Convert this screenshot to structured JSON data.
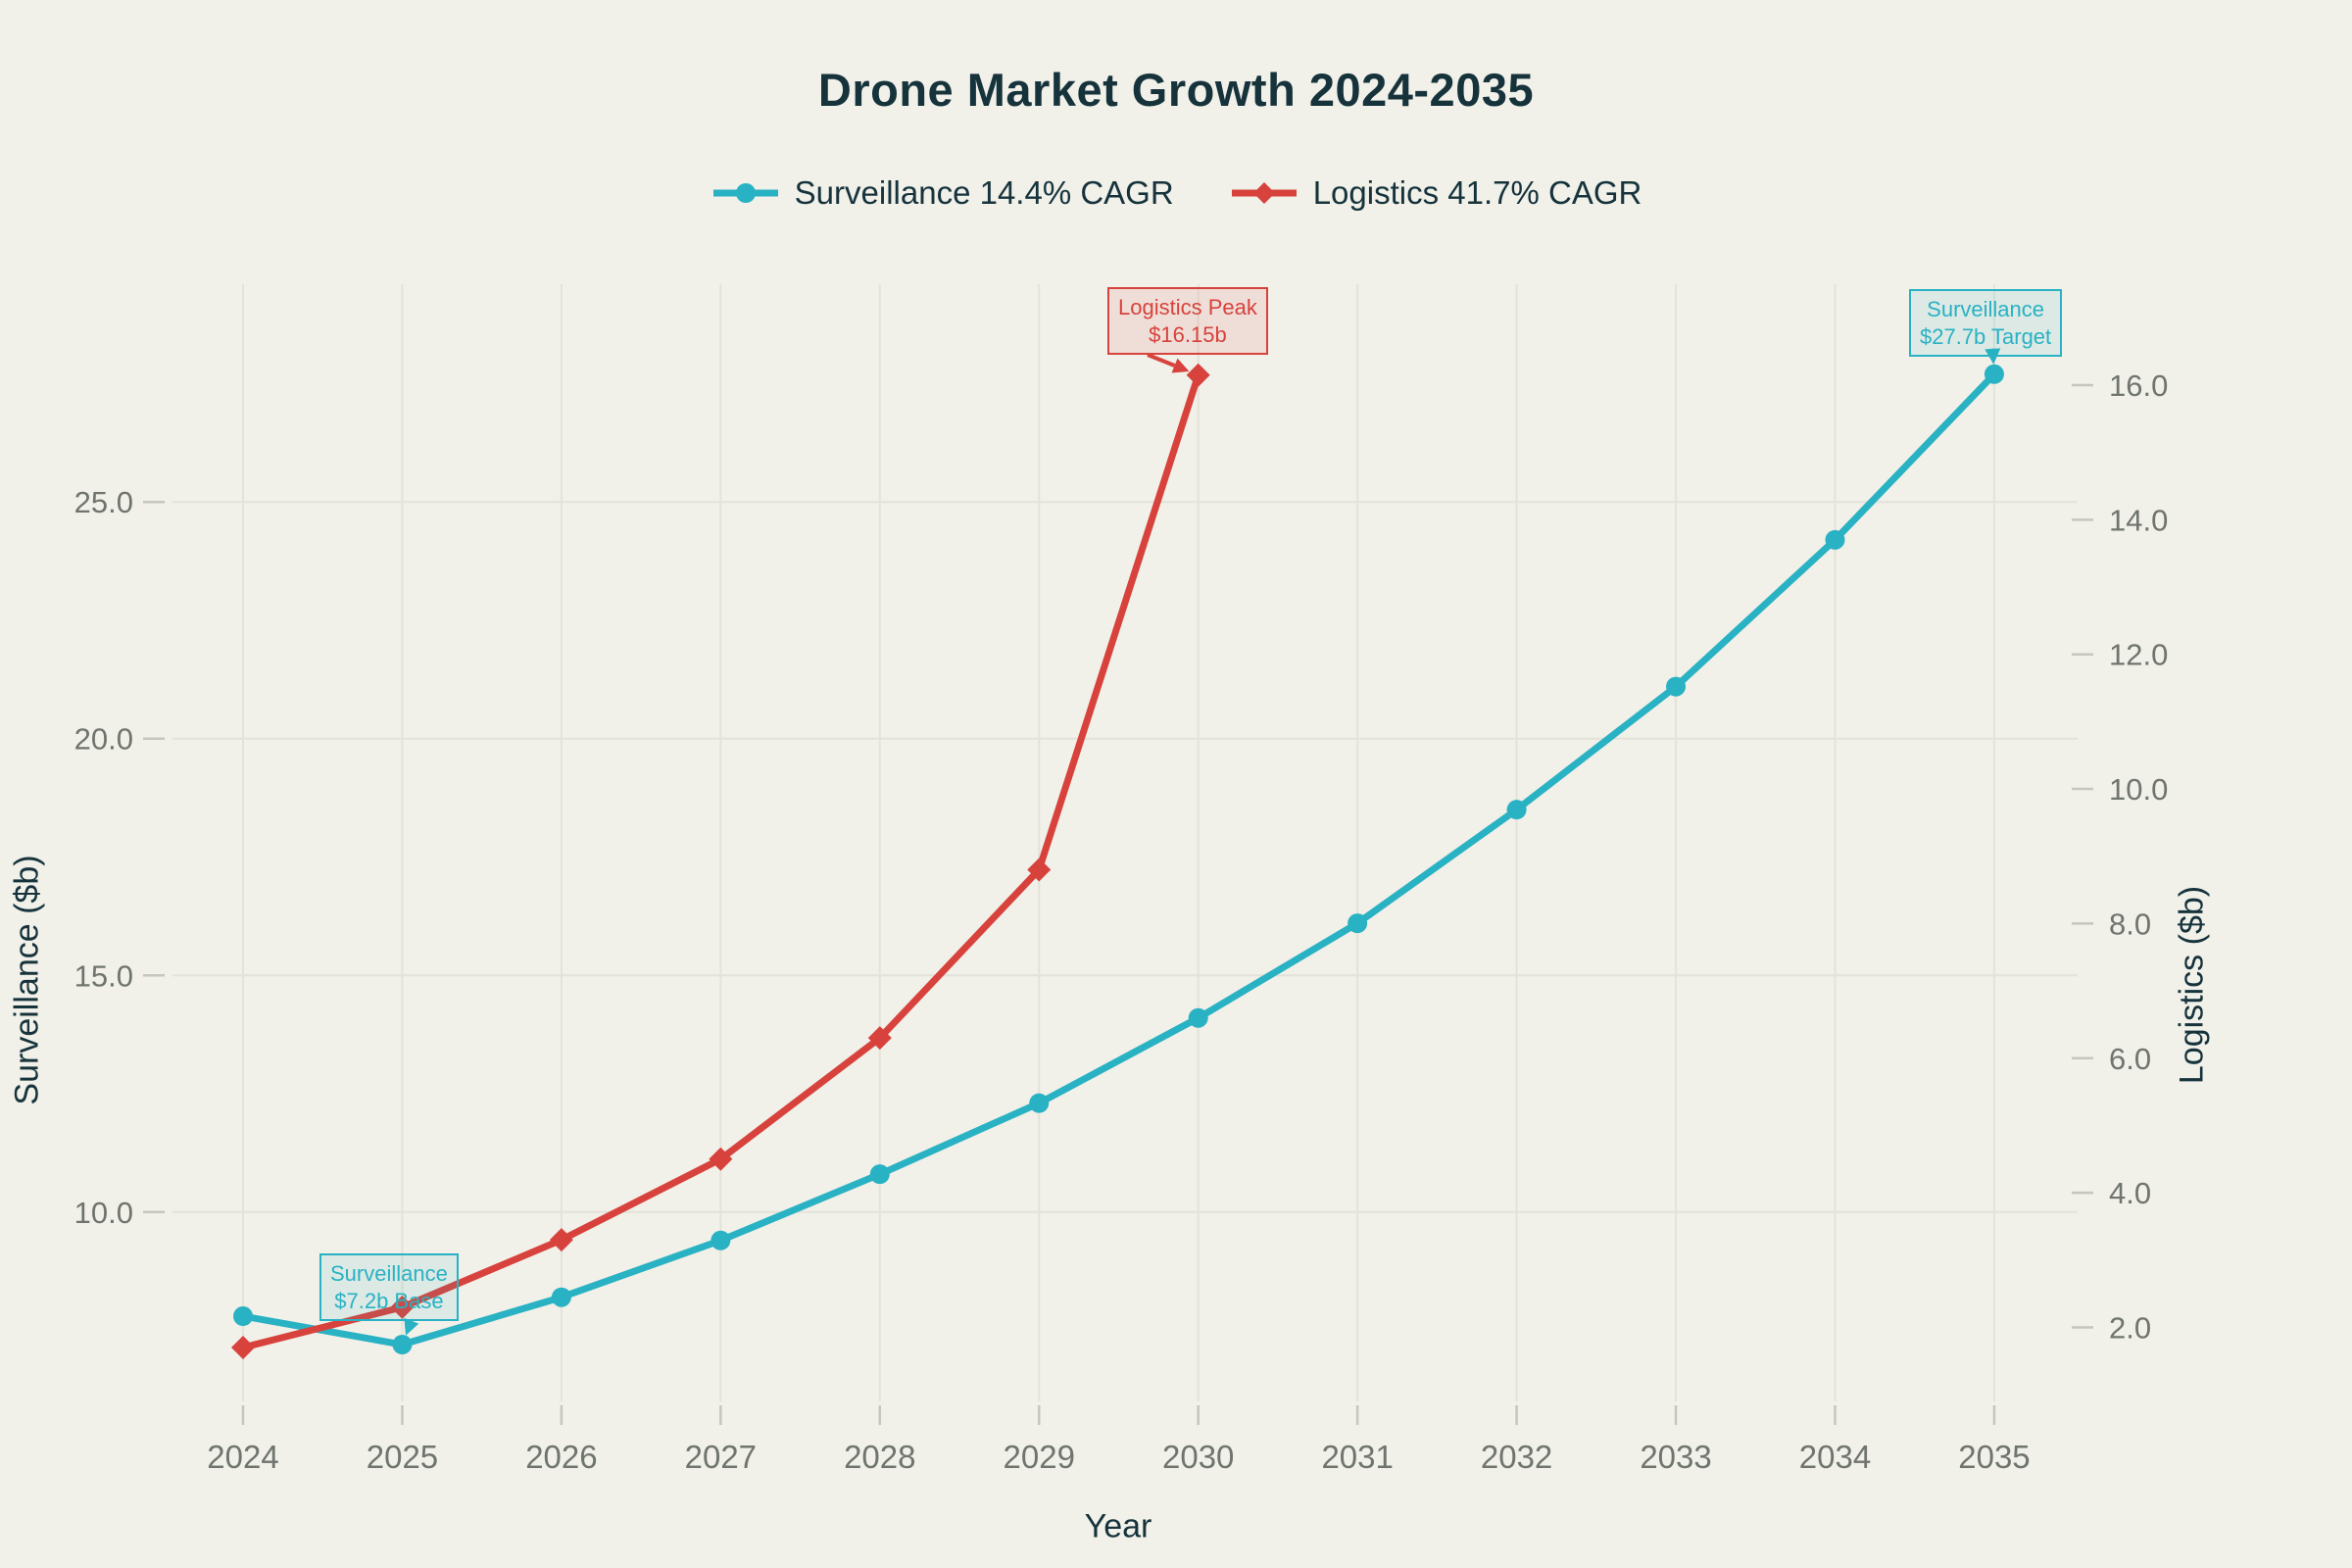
{
  "page": {
    "background": "#f1f0e9"
  },
  "colors": {
    "surveillance": "#29b2c3",
    "logistics": "#d8423c",
    "dark_text": "#16333c",
    "tick_text": "#6f746e",
    "gridline": "#e3e3da",
    "tick_dash": "#c6c6bd",
    "surveillance_box_bg": "rgba(41,178,195,0.10)",
    "logistics_box_bg": "rgba(216,66,60,0.10)"
  },
  "chart_data": {
    "type": "line",
    "title": "Drone Market Growth 2024-2035",
    "xlabel": "Year",
    "grid": true,
    "legend_position": "top-center",
    "x": [
      2024,
      2025,
      2026,
      2027,
      2028,
      2029,
      2030,
      2031,
      2032,
      2033,
      2034,
      2035
    ],
    "series": [
      {
        "name": "Surveillance 14.4% CAGR",
        "axis": "left",
        "marker": "circle",
        "color": "#29b2c3",
        "values": [
          7.8,
          7.2,
          8.2,
          9.4,
          10.8,
          12.3,
          14.1,
          16.1,
          18.5,
          21.1,
          24.2,
          27.7
        ]
      },
      {
        "name": "Logistics 41.7% CAGR",
        "axis": "right",
        "marker": "diamond",
        "color": "#d8423c",
        "values": [
          1.7,
          2.3,
          3.3,
          4.5,
          6.3,
          8.8,
          16.15
        ]
      }
    ],
    "left_axis": {
      "label": "Surveillance ($b)",
      "ticks": [
        10.0,
        15.0,
        20.0,
        25.0
      ],
      "range": [
        6.0,
        29.6
      ]
    },
    "right_axis": {
      "label": "Logistics ($b)",
      "ticks": [
        2.0,
        4.0,
        6.0,
        8.0,
        10.0,
        12.0,
        14.0,
        16.0
      ],
      "range": [
        0.9,
        17.5
      ]
    },
    "annotations": [
      {
        "id": "logistics-peak",
        "line1": "Logistics Peak",
        "line2": "$16.15b",
        "series": "logistics",
        "year": 2030,
        "value": 16.15
      },
      {
        "id": "surveillance-target",
        "line1": "Surveillance",
        "line2": "$27.7b Target",
        "series": "surveillance",
        "year": 2035,
        "value": 27.7
      },
      {
        "id": "surveillance-base",
        "line1": "Surveillance",
        "line2": "$7.2b Base",
        "series": "surveillance",
        "year": 2025,
        "value": 7.2
      }
    ]
  }
}
